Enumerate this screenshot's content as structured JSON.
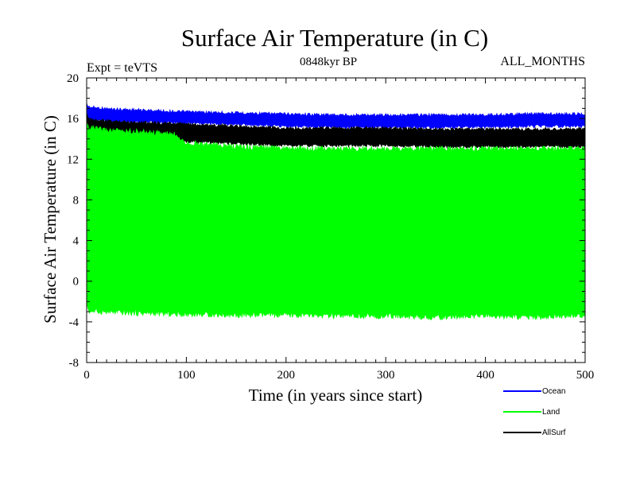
{
  "chart_data": {
    "type": "area",
    "title": "Surface Air Temperature (in C)",
    "subtitle_left": "Expt = teVTS",
    "subtitle_center": "0848kyr BP",
    "subtitle_right": "ALL_MONTHS",
    "xlabel": "Time (in years since start)",
    "ylabel": "Surface Air Temperature (in C)",
    "xlim": [
      0,
      500
    ],
    "ylim": [
      -8,
      20
    ],
    "x_ticks": [
      0,
      100,
      200,
      300,
      400,
      500
    ],
    "x_tick_labels": [
      "0",
      "100",
      "200",
      "300",
      "400",
      "500"
    ],
    "y_ticks": [
      -8,
      -4,
      0,
      4,
      8,
      12,
      16,
      20
    ],
    "y_tick_labels": [
      "-8",
      "-4",
      "0",
      "4",
      "8",
      "12",
      "16",
      "20"
    ],
    "grid": false,
    "legend_placement": "bottom-right",
    "series": [
      {
        "name": "Ocean",
        "color": "#0000ff",
        "note": "monthly seasonal band",
        "x": [
          0,
          2,
          20,
          50,
          100,
          150,
          200,
          250,
          300,
          350,
          400,
          450,
          500
        ],
        "upper": [
          17.6,
          17.3,
          17.1,
          17.0,
          16.8,
          16.7,
          16.6,
          16.5,
          16.5,
          16.5,
          16.5,
          16.6,
          16.6
        ],
        "lower": [
          15.6,
          15.7,
          15.6,
          15.5,
          15.4,
          15.3,
          15.1,
          15.0,
          15.0,
          15.0,
          15.0,
          15.1,
          15.1
        ]
      },
      {
        "name": "Land",
        "color": "#00ff00",
        "note": "monthly seasonal band",
        "x": [
          0,
          2,
          20,
          50,
          90,
          100,
          150,
          200,
          250,
          300,
          350,
          400,
          450,
          500
        ],
        "upper": [
          15.8,
          15.4,
          15.1,
          15.0,
          14.7,
          13.9,
          13.5,
          13.3,
          13.3,
          13.3,
          13.3,
          13.3,
          13.3,
          13.3
        ],
        "lower": [
          -2.2,
          -3.2,
          -3.3,
          -3.4,
          -3.5,
          -3.5,
          -3.6,
          -3.6,
          -3.7,
          -3.7,
          -3.8,
          -3.7,
          -3.8,
          -3.6
        ]
      },
      {
        "name": "AllSurf",
        "color": "#000000",
        "note": "monthly seasonal band",
        "x": [
          0,
          2,
          20,
          50,
          100,
          150,
          200,
          250,
          300,
          350,
          400,
          450,
          500
        ],
        "upper": [
          16.5,
          16.1,
          15.9,
          15.8,
          15.6,
          15.4,
          15.2,
          15.2,
          15.2,
          15.1,
          15.1,
          15.1,
          15.1
        ],
        "lower": [
          14.9,
          14.6,
          14.4,
          14.2,
          13.6,
          13.4,
          13.2,
          13.2,
          13.2,
          13.1,
          13.1,
          13.1,
          13.1
        ]
      }
    ]
  }
}
